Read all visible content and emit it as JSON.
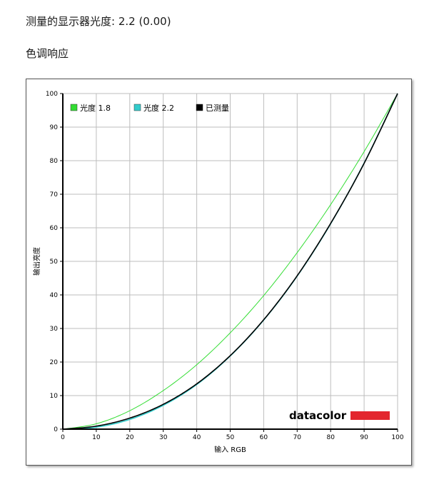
{
  "header": {
    "gamma_line": "测量的显示器光度:  2.2 (0.00)",
    "section_title": "色调响应"
  },
  "logo_text": "datacolor",
  "colors": {
    "gamma18": "#33dd33",
    "gamma22": "#33cccc",
    "measured": "#000000",
    "logo_bar": "#e3262e",
    "grid": "#bdbdbd"
  },
  "chart_data": {
    "type": "line",
    "title": "",
    "xlabel": "输入 RGB",
    "ylabel": "输出亮度",
    "xlim": [
      0,
      100
    ],
    "ylim": [
      0,
      100
    ],
    "grid": true,
    "legend_position": "top-left",
    "xticks": [
      0,
      10,
      20,
      30,
      40,
      50,
      60,
      70,
      80,
      90,
      100
    ],
    "yticks": [
      0,
      10,
      20,
      30,
      40,
      50,
      60,
      70,
      80,
      90,
      100
    ],
    "x": [
      0,
      10,
      20,
      30,
      40,
      50,
      60,
      70,
      80,
      90,
      100
    ],
    "series": [
      {
        "name": "光度 1.8",
        "color": "#33dd33",
        "values": [
          0,
          1.6,
          5.5,
          11.5,
          19.2,
          28.7,
          39.8,
          52.6,
          66.9,
          82.7,
          100
        ]
      },
      {
        "name": "光度 2.2",
        "color": "#33cccc",
        "values": [
          0,
          0.6,
          2.9,
          7.1,
          13.3,
          21.8,
          32.5,
          45.6,
          61.2,
          79.3,
          100
        ]
      },
      {
        "name": "已测量",
        "color": "#000000",
        "values": [
          0,
          0.9,
          3.3,
          7.4,
          13.5,
          21.9,
          32.6,
          45.7,
          61.3,
          79.2,
          100
        ]
      }
    ]
  }
}
